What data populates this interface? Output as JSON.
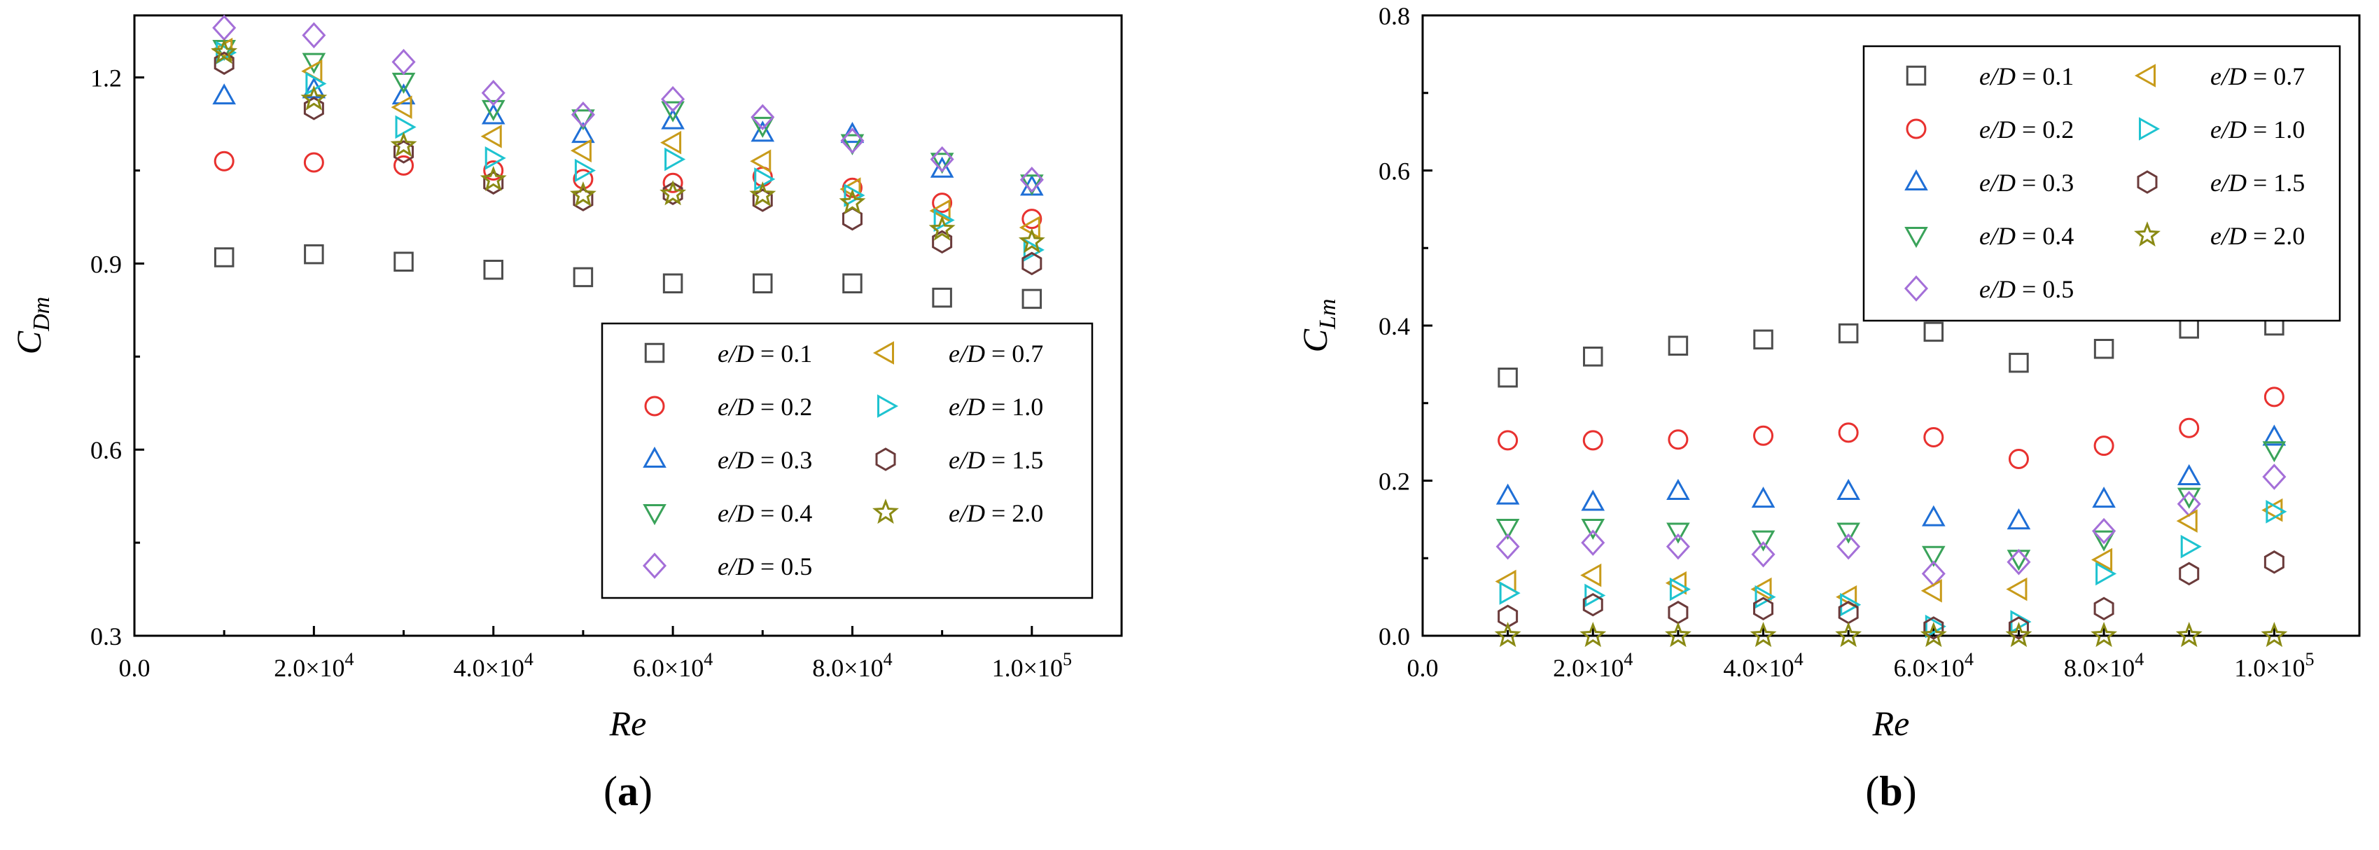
{
  "colors": {
    "0.1": "#4d4d4d",
    "0.2": "#e8312f",
    "0.3": "#1f6fd6",
    "0.4": "#3aa35a",
    "0.5": "#a46fd8",
    "0.7": "#c89b1a",
    "1.0": "#1ec3d0",
    "1.5": "#6b3b3b",
    "2.0": "#8a8a14"
  },
  "chart_data": [
    {
      "type": "scatter",
      "title": "",
      "panel_label": {
        "pre": "(",
        "letter": "a",
        "post": ")"
      },
      "xlabel": "Re",
      "ylabel": {
        "base": "C",
        "sub": "Dm"
      },
      "xlim": [
        0,
        110000
      ],
      "ylim": [
        0.3,
        1.3
      ],
      "x_ticks": [
        0,
        20000,
        40000,
        60000,
        80000,
        100000
      ],
      "x_tick_labels": [
        {
          "base": "0.0",
          "exp": ""
        },
        {
          "base": "2.0×10",
          "exp": "4"
        },
        {
          "base": "4.0×10",
          "exp": "4"
        },
        {
          "base": "6.0×10",
          "exp": "4"
        },
        {
          "base": "8.0×10",
          "exp": "4"
        },
        {
          "base": "1.0×10",
          "exp": "5"
        }
      ],
      "y_ticks": [
        0.3,
        0.6,
        0.9,
        1.2
      ],
      "y_tick_labels": [
        "0.3",
        "0.6",
        "0.9",
        "1.2"
      ],
      "grid": false,
      "legend": {
        "placement": "bottom-right",
        "columns": 2
      },
      "x": [
        10000,
        20000,
        30000,
        40000,
        50000,
        60000,
        70000,
        80000,
        90000,
        100000
      ],
      "series": [
        {
          "name": "e/D = 0.1",
          "marker": "square",
          "values": [
            0.91,
            0.915,
            0.903,
            0.89,
            0.878,
            0.868,
            0.868,
            0.868,
            0.845,
            0.843
          ]
        },
        {
          "name": "e/D = 0.2",
          "marker": "circle",
          "values": [
            1.065,
            1.063,
            1.058,
            1.05,
            1.036,
            1.03,
            1.04,
            1.022,
            0.998,
            0.972
          ]
        },
        {
          "name": "e/D = 0.3",
          "marker": "triangle-up",
          "values": [
            1.17,
            1.18,
            1.17,
            1.138,
            1.108,
            1.13,
            1.11,
            1.108,
            1.052,
            1.023
          ]
        },
        {
          "name": "e/D = 0.4",
          "marker": "triangle-down",
          "values": [
            1.247,
            1.226,
            1.194,
            1.15,
            1.135,
            1.148,
            1.123,
            1.095,
            1.065,
            1.03
          ]
        },
        {
          "name": "e/D = 0.5",
          "marker": "diamond",
          "values": [
            1.28,
            1.268,
            1.225,
            1.175,
            1.14,
            1.165,
            1.136,
            1.098,
            1.068,
            1.035
          ]
        },
        {
          "name": "e/D = 0.7",
          "marker": "triangle-left",
          "values": [
            1.245,
            1.21,
            1.152,
            1.105,
            1.082,
            1.095,
            1.065,
            1.02,
            0.985,
            0.958
          ]
        },
        {
          "name": "e/D = 1.0",
          "marker": "triangle-right",
          "values": [
            1.24,
            1.19,
            1.12,
            1.07,
            1.05,
            1.068,
            1.036,
            1.01,
            0.97,
            0.922
          ]
        },
        {
          "name": "e/D = 1.5",
          "marker": "hexagon",
          "values": [
            1.223,
            1.15,
            1.08,
            1.03,
            1.003,
            1.013,
            1.002,
            0.972,
            0.935,
            0.9
          ]
        },
        {
          "name": "e/D = 2.0",
          "marker": "star",
          "values": [
            1.24,
            1.165,
            1.09,
            1.035,
            1.01,
            1.012,
            1.01,
            0.998,
            0.955,
            0.935
          ]
        }
      ]
    },
    {
      "type": "scatter",
      "title": "",
      "panel_label": {
        "pre": "(",
        "letter": "b",
        "post": ")"
      },
      "xlabel": "Re",
      "ylabel": {
        "base": "C",
        "sub": "Lm"
      },
      "xlim": [
        0,
        110000
      ],
      "ylim": [
        0,
        0.8
      ],
      "x_ticks": [
        0,
        20000,
        40000,
        60000,
        80000,
        100000
      ],
      "x_tick_labels": [
        {
          "base": "0.0",
          "exp": ""
        },
        {
          "base": "2.0×10",
          "exp": "4"
        },
        {
          "base": "4.0×10",
          "exp": "4"
        },
        {
          "base": "6.0×10",
          "exp": "4"
        },
        {
          "base": "8.0×10",
          "exp": "4"
        },
        {
          "base": "1.0×10",
          "exp": "5"
        }
      ],
      "y_ticks": [
        0,
        0.2,
        0.4,
        0.6,
        0.8
      ],
      "y_tick_labels": [
        "0.0",
        "0.2",
        "0.4",
        "0.6",
        "0.8"
      ],
      "grid": false,
      "legend": {
        "placement": "top-right",
        "columns": 2
      },
      "x": [
        10000,
        20000,
        30000,
        40000,
        50000,
        60000,
        70000,
        80000,
        90000,
        100000
      ],
      "series": [
        {
          "name": "e/D = 0.1",
          "marker": "square",
          "values": [
            0.333,
            0.36,
            0.374,
            0.382,
            0.39,
            0.392,
            0.352,
            0.37,
            0.396,
            0.4
          ]
        },
        {
          "name": "e/D = 0.2",
          "marker": "circle",
          "values": [
            0.252,
            0.252,
            0.253,
            0.258,
            0.262,
            0.256,
            0.228,
            0.245,
            0.268,
            0.308
          ]
        },
        {
          "name": "e/D = 0.3",
          "marker": "triangle-up",
          "values": [
            0.18,
            0.172,
            0.186,
            0.176,
            0.186,
            0.152,
            0.148,
            0.176,
            0.205,
            0.256
          ]
        },
        {
          "name": "e/D = 0.4",
          "marker": "triangle-down",
          "values": [
            0.14,
            0.14,
            0.135,
            0.125,
            0.135,
            0.105,
            0.1,
            0.125,
            0.18,
            0.24
          ]
        },
        {
          "name": "e/D = 0.5",
          "marker": "diamond",
          "values": [
            0.115,
            0.12,
            0.115,
            0.105,
            0.115,
            0.08,
            0.095,
            0.135,
            0.17,
            0.205
          ]
        },
        {
          "name": "e/D = 0.7",
          "marker": "triangle-left",
          "values": [
            0.07,
            0.078,
            0.068,
            0.06,
            0.05,
            0.058,
            0.06,
            0.098,
            0.148,
            0.162
          ]
        },
        {
          "name": "e/D = 1.0",
          "marker": "triangle-right",
          "values": [
            0.055,
            0.052,
            0.06,
            0.05,
            0.04,
            0.012,
            0.018,
            0.08,
            0.115,
            0.16
          ]
        },
        {
          "name": "e/D = 1.5",
          "marker": "hexagon",
          "values": [
            0.025,
            0.04,
            0.03,
            0.035,
            0.03,
            0.01,
            0.01,
            0.035,
            0.08,
            0.095
          ]
        },
        {
          "name": "e/D = 2.0",
          "marker": "star",
          "values": [
            0.0,
            0.0,
            0.0,
            0.0,
            0.0,
            0.0,
            0.0,
            0.0,
            0.0,
            0.0
          ]
        }
      ]
    }
  ]
}
